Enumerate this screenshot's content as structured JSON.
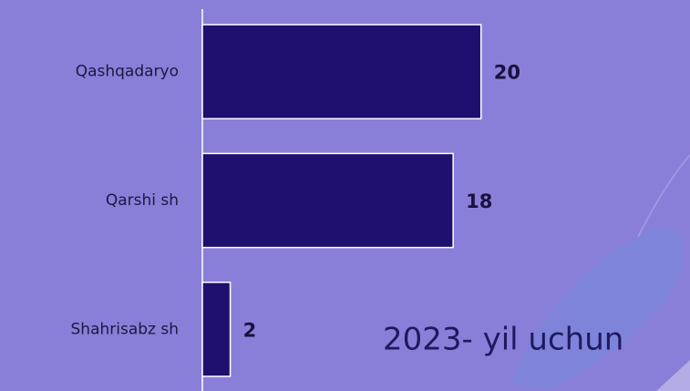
{
  "chart_data": {
    "type": "bar",
    "orientation": "horizontal",
    "categories": [
      "Qashqadaryo",
      "Qarshi sh",
      "Shahrisabz sh"
    ],
    "values": [
      20,
      18,
      2
    ],
    "color": "#1f0f6e",
    "xlim": [
      0,
      35
    ],
    "annotation": "2023- yil uchun"
  }
}
